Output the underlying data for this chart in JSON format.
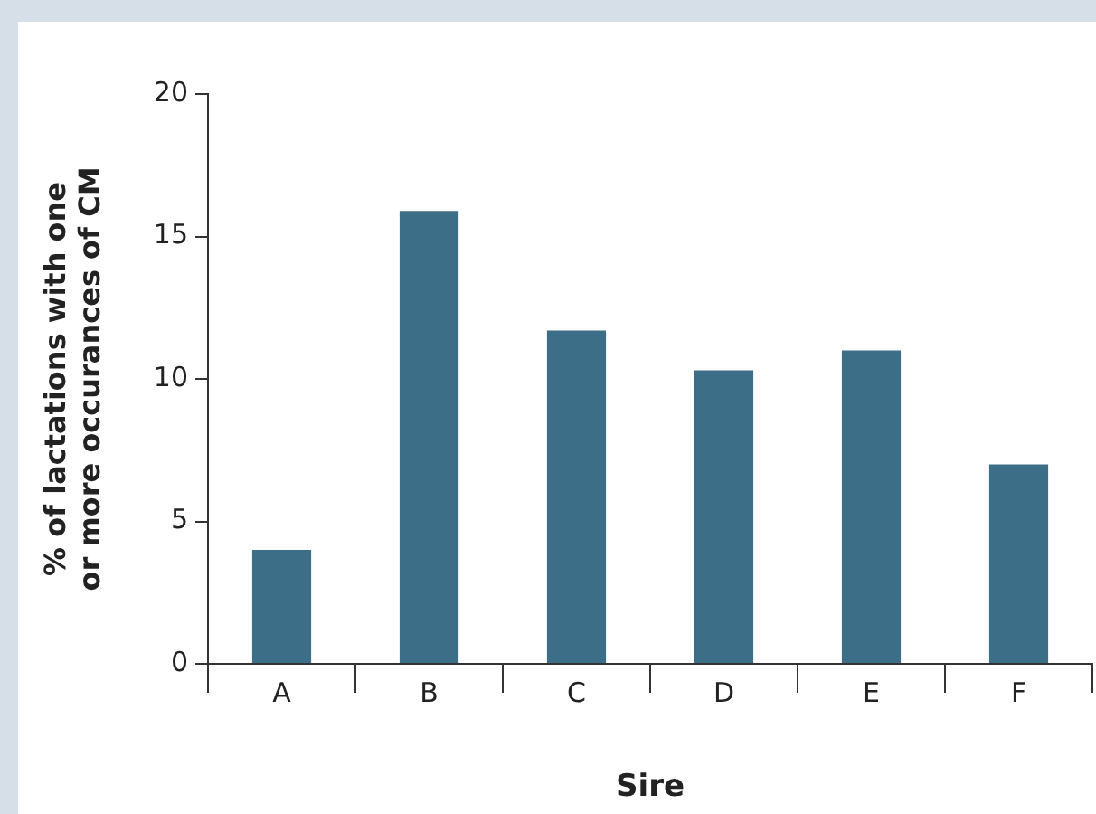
{
  "chart_data": {
    "type": "bar",
    "xlabel": "Sire",
    "ylabel": "% of lactations with one or more occurances of CM",
    "categories": [
      "A",
      "B",
      "C",
      "D",
      "E",
      "F"
    ],
    "values": [
      4.0,
      15.9,
      11.7,
      10.3,
      11.0,
      7.0
    ],
    "color": "#3d6e87",
    "ylim": [
      0,
      20
    ],
    "yticks": [
      0,
      5,
      10,
      15,
      20
    ],
    "grid": false,
    "legend": false
  }
}
